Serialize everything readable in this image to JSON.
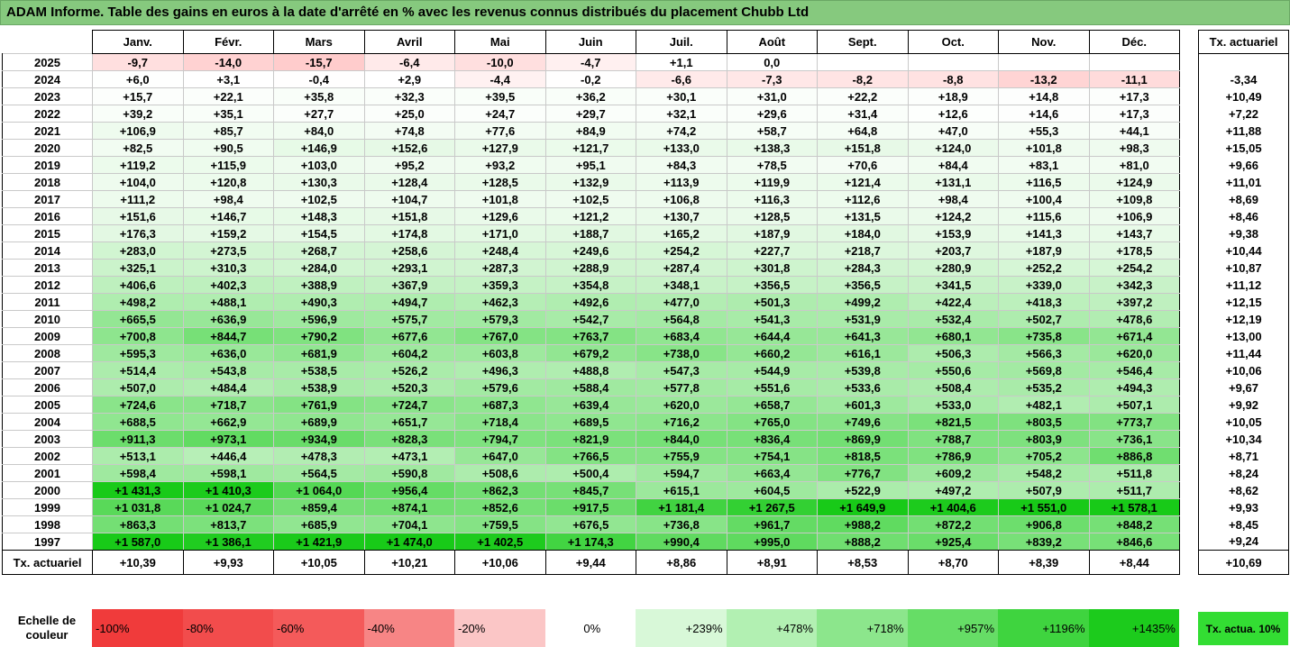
{
  "title": "ADAM Informe. Table des gains en euros à la date d'arrêté en % avec les revenus connus distribués du placement Chubb Ltd",
  "months": [
    "Janv.",
    "Févr.",
    "Mars",
    "Avril",
    "Mai",
    "Juin",
    "Juil.",
    "Août",
    "Sept.",
    "Oct.",
    "Nov.",
    "Déc."
  ],
  "tx_header": "Tx. actuariel",
  "rows": [
    {
      "year": "2025",
      "values": [
        "-9,7",
        "-14,0",
        "-15,7",
        "-6,4",
        "-10,0",
        "-4,7",
        "+1,1",
        "0,0",
        "",
        "",
        "",
        ""
      ],
      "tx": ""
    },
    {
      "year": "2024",
      "values": [
        "+6,0",
        "+3,1",
        "-0,4",
        "+2,9",
        "-4,4",
        "-0,2",
        "-6,6",
        "-7,3",
        "-8,2",
        "-8,8",
        "-13,2",
        "-11,1"
      ],
      "tx": "-3,34"
    },
    {
      "year": "2023",
      "values": [
        "+15,7",
        "+22,1",
        "+35,8",
        "+32,3",
        "+39,5",
        "+36,2",
        "+30,1",
        "+31,0",
        "+22,2",
        "+18,9",
        "+14,8",
        "+17,3"
      ],
      "tx": "+10,49"
    },
    {
      "year": "2022",
      "values": [
        "+39,2",
        "+35,1",
        "+27,7",
        "+25,0",
        "+24,7",
        "+29,7",
        "+32,1",
        "+29,6",
        "+31,4",
        "+12,6",
        "+14,6",
        "+17,3"
      ],
      "tx": "+7,22"
    },
    {
      "year": "2021",
      "values": [
        "+106,9",
        "+85,7",
        "+84,0",
        "+74,8",
        "+77,6",
        "+84,9",
        "+74,2",
        "+58,7",
        "+64,8",
        "+47,0",
        "+55,3",
        "+44,1"
      ],
      "tx": "+11,88"
    },
    {
      "year": "2020",
      "values": [
        "+82,5",
        "+90,5",
        "+146,9",
        "+152,6",
        "+127,9",
        "+121,7",
        "+133,0",
        "+138,3",
        "+151,8",
        "+124,0",
        "+101,8",
        "+98,3"
      ],
      "tx": "+15,05"
    },
    {
      "year": "2019",
      "values": [
        "+119,2",
        "+115,9",
        "+103,0",
        "+95,2",
        "+93,2",
        "+95,1",
        "+84,3",
        "+78,5",
        "+70,6",
        "+84,4",
        "+83,1",
        "+81,0"
      ],
      "tx": "+9,66"
    },
    {
      "year": "2018",
      "values": [
        "+104,0",
        "+120,8",
        "+130,3",
        "+128,4",
        "+128,5",
        "+132,9",
        "+113,9",
        "+119,9",
        "+121,4",
        "+131,1",
        "+116,5",
        "+124,9"
      ],
      "tx": "+11,01"
    },
    {
      "year": "2017",
      "values": [
        "+111,2",
        "+98,4",
        "+102,5",
        "+104,7",
        "+101,8",
        "+102,5",
        "+106,8",
        "+116,3",
        "+112,6",
        "+98,4",
        "+100,4",
        "+109,8"
      ],
      "tx": "+8,69"
    },
    {
      "year": "2016",
      "values": [
        "+151,6",
        "+146,7",
        "+148,3",
        "+151,8",
        "+129,6",
        "+121,2",
        "+130,7",
        "+128,5",
        "+131,5",
        "+124,2",
        "+115,6",
        "+106,9"
      ],
      "tx": "+8,46"
    },
    {
      "year": "2015",
      "values": [
        "+176,3",
        "+159,2",
        "+154,5",
        "+174,8",
        "+171,0",
        "+188,7",
        "+165,2",
        "+187,9",
        "+184,0",
        "+153,9",
        "+141,3",
        "+143,7"
      ],
      "tx": "+9,38"
    },
    {
      "year": "2014",
      "values": [
        "+283,0",
        "+273,5",
        "+268,7",
        "+258,6",
        "+248,4",
        "+249,6",
        "+254,2",
        "+227,7",
        "+218,7",
        "+203,7",
        "+187,9",
        "+178,5"
      ],
      "tx": "+10,44"
    },
    {
      "year": "2013",
      "values": [
        "+325,1",
        "+310,3",
        "+284,0",
        "+293,1",
        "+287,3",
        "+288,9",
        "+287,4",
        "+301,8",
        "+284,3",
        "+280,9",
        "+252,2",
        "+254,2"
      ],
      "tx": "+10,87"
    },
    {
      "year": "2012",
      "values": [
        "+406,6",
        "+402,3",
        "+388,9",
        "+367,9",
        "+359,3",
        "+354,8",
        "+348,1",
        "+356,5",
        "+356,5",
        "+341,5",
        "+339,0",
        "+342,3"
      ],
      "tx": "+11,12"
    },
    {
      "year": "2011",
      "values": [
        "+498,2",
        "+488,1",
        "+490,3",
        "+494,7",
        "+462,3",
        "+492,6",
        "+477,0",
        "+501,3",
        "+499,2",
        "+422,4",
        "+418,3",
        "+397,2"
      ],
      "tx": "+12,15"
    },
    {
      "year": "2010",
      "values": [
        "+665,5",
        "+636,9",
        "+596,9",
        "+575,7",
        "+579,3",
        "+542,7",
        "+564,8",
        "+541,3",
        "+531,9",
        "+532,4",
        "+502,7",
        "+478,6"
      ],
      "tx": "+12,19"
    },
    {
      "year": "2009",
      "values": [
        "+700,8",
        "+844,7",
        "+790,2",
        "+677,6",
        "+767,0",
        "+763,7",
        "+683,4",
        "+644,4",
        "+641,3",
        "+680,1",
        "+735,8",
        "+671,4"
      ],
      "tx": "+13,00"
    },
    {
      "year": "2008",
      "values": [
        "+595,3",
        "+636,0",
        "+681,9",
        "+604,2",
        "+603,8",
        "+679,2",
        "+738,0",
        "+660,2",
        "+616,1",
        "+506,3",
        "+566,3",
        "+620,0"
      ],
      "tx": "+11,44"
    },
    {
      "year": "2007",
      "values": [
        "+514,4",
        "+543,8",
        "+538,5",
        "+526,2",
        "+496,3",
        "+488,8",
        "+547,3",
        "+544,9",
        "+539,8",
        "+550,6",
        "+569,8",
        "+546,4"
      ],
      "tx": "+10,06"
    },
    {
      "year": "2006",
      "values": [
        "+507,0",
        "+484,4",
        "+538,9",
        "+520,3",
        "+579,6",
        "+588,4",
        "+577,8",
        "+551,6",
        "+533,6",
        "+508,4",
        "+535,2",
        "+494,3"
      ],
      "tx": "+9,67"
    },
    {
      "year": "2005",
      "values": [
        "+724,6",
        "+718,7",
        "+761,9",
        "+724,7",
        "+687,3",
        "+639,4",
        "+620,0",
        "+658,7",
        "+601,3",
        "+533,0",
        "+482,1",
        "+507,1"
      ],
      "tx": "+9,92"
    },
    {
      "year": "2004",
      "values": [
        "+688,5",
        "+662,9",
        "+689,9",
        "+651,7",
        "+718,4",
        "+689,5",
        "+716,2",
        "+765,0",
        "+749,6",
        "+821,5",
        "+803,5",
        "+773,7"
      ],
      "tx": "+10,05"
    },
    {
      "year": "2003",
      "values": [
        "+911,3",
        "+973,1",
        "+934,9",
        "+828,3",
        "+794,7",
        "+821,9",
        "+844,0",
        "+836,4",
        "+869,9",
        "+788,7",
        "+803,9",
        "+736,1"
      ],
      "tx": "+10,34"
    },
    {
      "year": "2002",
      "values": [
        "+513,1",
        "+446,4",
        "+478,3",
        "+473,1",
        "+647,0",
        "+766,5",
        "+755,9",
        "+754,1",
        "+818,5",
        "+786,9",
        "+705,2",
        "+886,8"
      ],
      "tx": "+8,71"
    },
    {
      "year": "2001",
      "values": [
        "+598,4",
        "+598,1",
        "+564,5",
        "+590,8",
        "+508,6",
        "+500,4",
        "+594,7",
        "+663,4",
        "+776,7",
        "+609,2",
        "+548,2",
        "+511,8"
      ],
      "tx": "+8,24"
    },
    {
      "year": "2000",
      "values": [
        "+1 431,3",
        "+1 410,3",
        "+1 064,0",
        "+956,4",
        "+862,3",
        "+845,7",
        "+615,1",
        "+604,5",
        "+522,9",
        "+497,2",
        "+507,9",
        "+511,7"
      ],
      "tx": "+8,62"
    },
    {
      "year": "1999",
      "values": [
        "+1 031,8",
        "+1 024,7",
        "+859,4",
        "+874,1",
        "+852,6",
        "+917,5",
        "+1 181,4",
        "+1 267,5",
        "+1 649,9",
        "+1 404,6",
        "+1 551,0",
        "+1 578,1"
      ],
      "tx": "+9,93"
    },
    {
      "year": "1998",
      "values": [
        "+863,3",
        "+813,7",
        "+685,9",
        "+704,1",
        "+759,5",
        "+676,5",
        "+736,8",
        "+961,7",
        "+988,2",
        "+872,2",
        "+906,8",
        "+848,2"
      ],
      "tx": "+8,45"
    },
    {
      "year": "1997",
      "values": [
        "+1 587,0",
        "+1 386,1",
        "+1 421,9",
        "+1 474,0",
        "+1 402,5",
        "+1 174,3",
        "+990,4",
        "+995,0",
        "+888,2",
        "+925,4",
        "+839,2",
        "+846,6"
      ],
      "tx": "+9,24"
    }
  ],
  "footer": {
    "label": "Tx. actuariel",
    "values": [
      "+10,39",
      "+9,93",
      "+10,05",
      "+10,21",
      "+10,06",
      "+9,44",
      "+8,86",
      "+8,91",
      "+8,53",
      "+8,70",
      "+8,39",
      "+8,44"
    ],
    "total": "+10,69"
  },
  "scale": {
    "label": "Echelle de couleur",
    "items": [
      {
        "text": "-100%",
        "color": "#f03b3b"
      },
      {
        "text": "-80%",
        "color": "#f24c4c"
      },
      {
        "text": "-60%",
        "color": "#f45a5a"
      },
      {
        "text": "-40%",
        "color": "#f78585"
      },
      {
        "text": "-20%",
        "color": "#fbc6c6"
      },
      {
        "text": "0%",
        "color": "#ffffff"
      },
      {
        "text": "+239%",
        "color": "#d8f8d8"
      },
      {
        "text": "+478%",
        "color": "#b2f0b2"
      },
      {
        "text": "+718%",
        "color": "#8ce68c"
      },
      {
        "text": "+957%",
        "color": "#66dd66"
      },
      {
        "text": "+1196%",
        "color": "#3fd43f"
      },
      {
        "text": "+1435%",
        "color": "#1ccb1c"
      }
    ],
    "tx_label": "Tx. actua. 10%"
  },
  "colors": {
    "title_bg": "#86c97e",
    "tx_swatch": "#33dd33"
  }
}
